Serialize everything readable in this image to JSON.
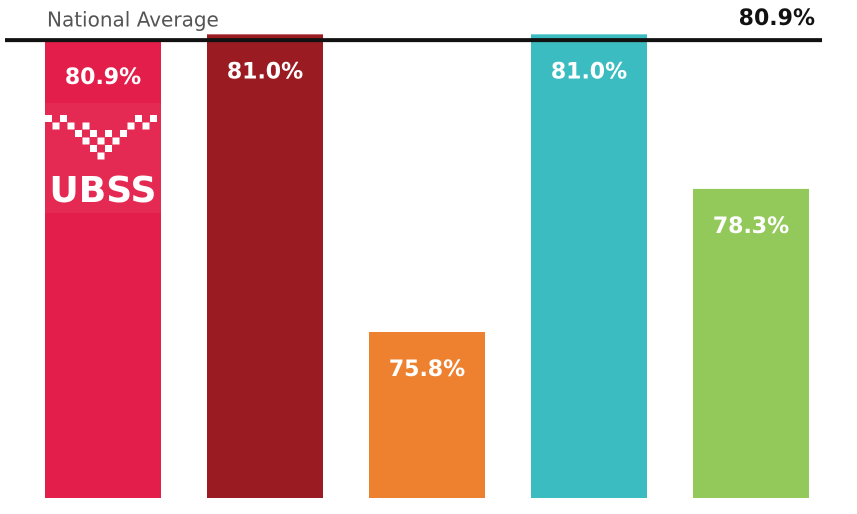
{
  "chart_data": {
    "type": "bar",
    "values": [
      80.9,
      81.0,
      75.8,
      81.0,
      78.3
    ],
    "value_labels": [
      "80.9%",
      "81.0%",
      "75.8%",
      "81.0%",
      "78.3%"
    ],
    "colors": [
      "#e31e4a",
      "#9b1b22",
      "#ee8130",
      "#3bbcc0",
      "#93c95a"
    ],
    "ylim": [
      72.9,
      81.6
    ],
    "reference_line": {
      "label": "National Average",
      "value": 80.9,
      "value_label": "80.9%",
      "color": "#111111"
    },
    "logo_text": "UBSS"
  }
}
